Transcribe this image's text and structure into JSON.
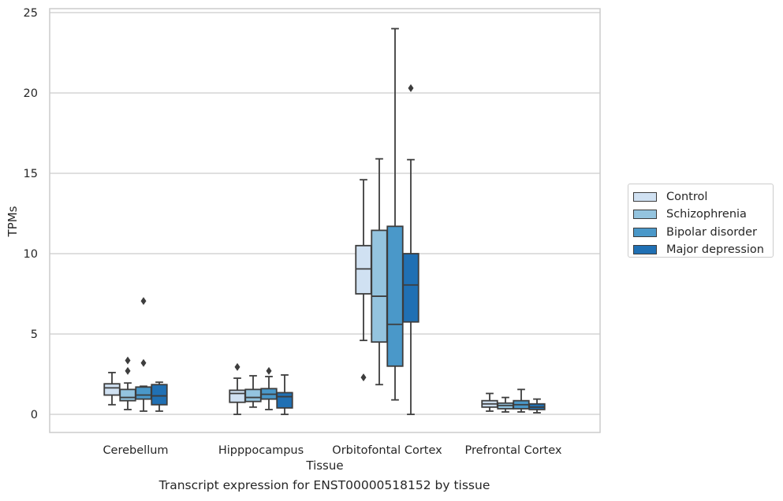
{
  "caption": "Transcript expression for ENST00000518152 by tissue",
  "chart_data": {
    "type": "box",
    "xlabel": "Tissue",
    "ylabel": "TPMs",
    "ylim": [
      -1.1,
      25.3
    ],
    "yticks": [
      0,
      5,
      10,
      15,
      20,
      25
    ],
    "grid": "horizontal",
    "legend_position": "outside-right",
    "categories": [
      "Cerebellum",
      "Hipppocampus",
      "Orbitofontal Cortex",
      "Prefrontal Cortex"
    ],
    "series": [
      {
        "name": "Control",
        "color": "#d0e1f2",
        "boxes": [
          {
            "whisker_low": 0.6,
            "q1": 1.2,
            "median": 1.65,
            "q3": 1.9,
            "whisker_high": 2.6,
            "outliers": []
          },
          {
            "whisker_low": 0.0,
            "q1": 0.75,
            "median": 1.3,
            "q3": 1.5,
            "whisker_high": 2.25,
            "outliers": [
              2.95
            ]
          },
          {
            "whisker_low": 4.6,
            "q1": 7.5,
            "median": 9.05,
            "q3": 10.5,
            "whisker_high": 14.6,
            "outliers": [
              2.3
            ]
          },
          {
            "whisker_low": 0.2,
            "q1": 0.45,
            "median": 0.65,
            "q3": 0.85,
            "whisker_high": 1.3,
            "outliers": []
          }
        ]
      },
      {
        "name": "Schizophrenia",
        "color": "#94c4df",
        "boxes": [
          {
            "whisker_low": 0.3,
            "q1": 0.85,
            "median": 1.05,
            "q3": 1.55,
            "whisker_high": 1.95,
            "outliers": [
              2.7,
              3.35
            ]
          },
          {
            "whisker_low": 0.45,
            "q1": 0.8,
            "median": 1.05,
            "q3": 1.55,
            "whisker_high": 2.4,
            "outliers": []
          },
          {
            "whisker_low": 1.85,
            "q1": 4.5,
            "median": 7.35,
            "q3": 11.45,
            "whisker_high": 15.9,
            "outliers": []
          },
          {
            "whisker_low": 0.15,
            "q1": 0.35,
            "median": 0.55,
            "q3": 0.7,
            "whisker_high": 1.05,
            "outliers": []
          }
        ]
      },
      {
        "name": "Bipolar disorder",
        "color": "#4a98c9",
        "boxes": [
          {
            "whisker_low": 0.2,
            "q1": 0.95,
            "median": 1.2,
            "q3": 1.7,
            "whisker_high": 1.75,
            "outliers": [
              3.2,
              7.05
            ]
          },
          {
            "whisker_low": 0.3,
            "q1": 0.95,
            "median": 1.25,
            "q3": 1.6,
            "whisker_high": 2.35,
            "outliers": [
              2.7
            ]
          },
          {
            "whisker_low": 0.9,
            "q1": 3.0,
            "median": 5.6,
            "q3": 11.7,
            "whisker_high": 24.0,
            "outliers": []
          },
          {
            "whisker_low": 0.15,
            "q1": 0.35,
            "median": 0.6,
            "q3": 0.85,
            "whisker_high": 1.55,
            "outliers": []
          }
        ]
      },
      {
        "name": "Major depression",
        "color": "#2070b4",
        "boxes": [
          {
            "whisker_low": 0.2,
            "q1": 0.6,
            "median": 1.15,
            "q3": 1.85,
            "whisker_high": 2.0,
            "outliers": []
          },
          {
            "whisker_low": 0.0,
            "q1": 0.4,
            "median": 1.1,
            "q3": 1.35,
            "whisker_high": 2.45,
            "outliers": []
          },
          {
            "whisker_low": 0.0,
            "q1": 5.75,
            "median": 8.05,
            "q3": 10.0,
            "whisker_high": 15.85,
            "outliers": [
              20.3
            ]
          },
          {
            "whisker_low": 0.1,
            "q1": 0.3,
            "median": 0.45,
            "q3": 0.65,
            "whisker_high": 0.95,
            "outliers": []
          }
        ]
      }
    ]
  }
}
